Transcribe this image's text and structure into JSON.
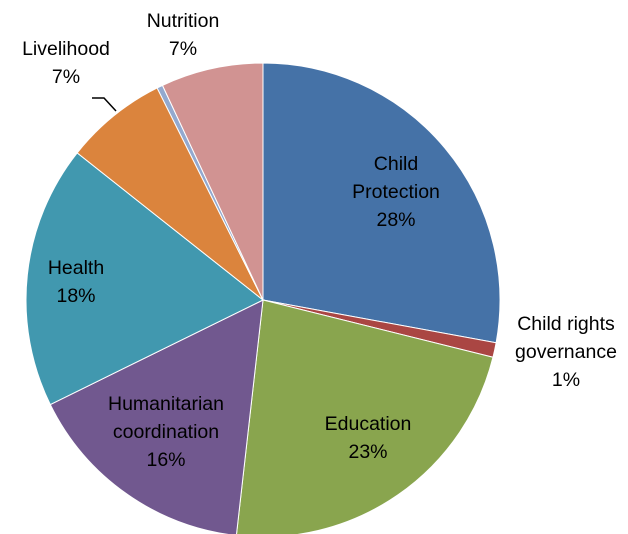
{
  "chart_data": {
    "type": "pie",
    "title": "",
    "start_angle_deg": 0,
    "direction": "clockwise",
    "legend": "none",
    "slices": [
      {
        "label": "Child Protection",
        "label_lines": [
          "Child",
          "Protection"
        ],
        "value": 28,
        "value_text": "28%",
        "color": "#4572A7"
      },
      {
        "label": "Child rights governance",
        "label_lines": [
          "Child rights",
          "governance"
        ],
        "value": 1,
        "value_text": "1%",
        "color": "#AA4643"
      },
      {
        "label": "Education",
        "label_lines": [
          "Education"
        ],
        "value": 23,
        "value_text": "23%",
        "color": "#89A54E"
      },
      {
        "label": "Humanitarian coordination",
        "label_lines": [
          "Humanitarian",
          "coordination"
        ],
        "value": 16,
        "value_text": "16%",
        "color": "#71588F"
      },
      {
        "label": "Health",
        "label_lines": [
          "Health"
        ],
        "value": 18,
        "value_text": "18%",
        "color": "#4198AF"
      },
      {
        "label": "Livelihood",
        "label_lines": [
          "Livelihood"
        ],
        "value": 7,
        "value_text": "7%",
        "color": "#DB843D"
      },
      {
        "label": "",
        "label_lines": [],
        "value": 0.4,
        "value_text": "",
        "color": "#93A9CF"
      },
      {
        "label": "Nutrition",
        "label_lines": [
          "Nutrition"
        ],
        "value": 7,
        "value_text": "7%",
        "color": "#D19392"
      }
    ]
  }
}
